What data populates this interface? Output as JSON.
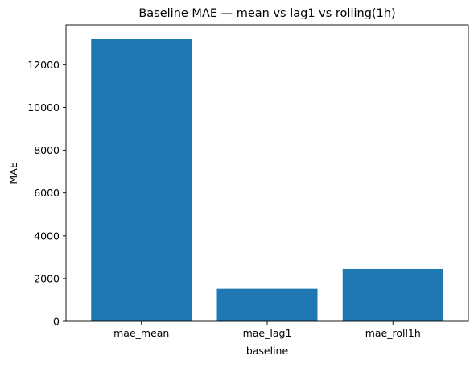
{
  "chart_data": {
    "type": "bar",
    "title": "Baseline MAE — mean vs lag1 vs rolling(1h)",
    "xlabel": "baseline",
    "ylabel": "MAE",
    "categories": [
      "mae_mean",
      "mae_lag1",
      "mae_roll1h"
    ],
    "values": [
      13200,
      1520,
      2450
    ],
    "ylim": [
      0,
      13860
    ],
    "yticks": [
      0,
      2000,
      4000,
      6000,
      8000,
      10000,
      12000
    ],
    "ytick_labels": [
      "0",
      "2000",
      "4000",
      "6000",
      "8000",
      "10000",
      "12000"
    ],
    "bar_color": "#1f77b4",
    "grid": false,
    "legend": "none"
  }
}
